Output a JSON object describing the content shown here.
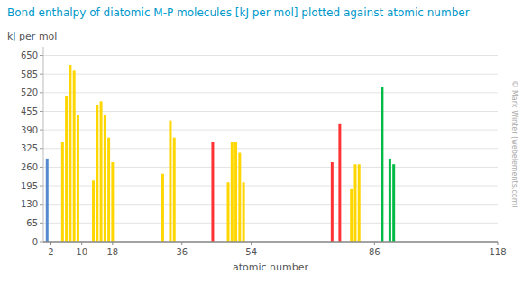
{
  "chart_data": {
    "type": "bar",
    "title": "Bond enthalpy of diatomic M-P molecules [kJ per mol] plotted against atomic number",
    "x_label": "atomic number",
    "y_label": "kJ per mol",
    "x": [
      1,
      5,
      6,
      7,
      8,
      9,
      13,
      14,
      15,
      16,
      17,
      18,
      31,
      33,
      34,
      44,
      48,
      49,
      50,
      51,
      52,
      75,
      77,
      80,
      81,
      82,
      88,
      90,
      91
    ],
    "values": [
      290,
      347,
      507,
      617,
      597,
      443,
      213,
      477,
      490,
      443,
      363,
      277,
      237,
      423,
      363,
      347,
      207,
      347,
      347,
      310,
      207,
      277,
      413,
      183,
      270,
      270,
      540,
      290,
      270
    ],
    "colors": [
      "#5588CC",
      "#FFD700",
      "#FFD700",
      "#FFD700",
      "#FFD700",
      "#FFD700",
      "#FFD700",
      "#FFD700",
      "#FFD700",
      "#FFD700",
      "#FFD700",
      "#FFD700",
      "#FFD700",
      "#FFD700",
      "#FFD700",
      "#FF3333",
      "#FFD700",
      "#FFD700",
      "#FFD700",
      "#FFD700",
      "#FFD700",
      "#FF3333",
      "#FF3333",
      "#FFD700",
      "#FFD700",
      "#FFD700",
      "#00BB44",
      "#00BB44",
      "#00BB44"
    ],
    "xlim": [
      0,
      118
    ],
    "ylim": [
      0,
      680
    ],
    "xticks": [
      2,
      10,
      18,
      36,
      54,
      86,
      118
    ],
    "yticks": [
      0,
      65,
      130,
      195,
      260,
      325,
      390,
      455,
      520,
      585,
      650
    ],
    "grid": true,
    "annotations": [
      "© Mark Winter (webelements.com)"
    ]
  }
}
